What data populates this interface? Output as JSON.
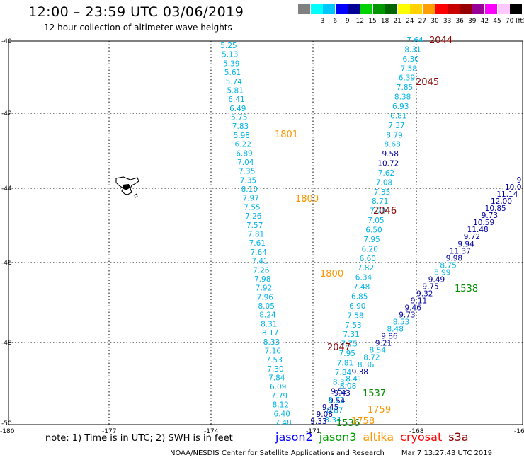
{
  "header": {
    "title": "12:00 – 23:59 UTC 03/06/2019",
    "subtitle": "12 hour collection of altimeter wave heights"
  },
  "legend": {
    "unit": "(ft)",
    "bins": [
      {
        "color": "#808080",
        "label": ""
      },
      {
        "color": "#00ffff",
        "label": "3"
      },
      {
        "color": "#00c8ff",
        "label": "6"
      },
      {
        "color": "#0000ff",
        "label": "9"
      },
      {
        "color": "#000096",
        "label": "12"
      },
      {
        "color": "#00d200",
        "label": "15"
      },
      {
        "color": "#009600",
        "label": "18"
      },
      {
        "color": "#006400",
        "label": "21"
      },
      {
        "color": "#ffff00",
        "label": "24"
      },
      {
        "color": "#ffd200",
        "label": "27"
      },
      {
        "color": "#ffa000",
        "label": "30"
      },
      {
        "color": "#ff0000",
        "label": "33"
      },
      {
        "color": "#c80000",
        "label": "36"
      },
      {
        "color": "#960000",
        "label": "39"
      },
      {
        "color": "#960096",
        "label": "42"
      },
      {
        "color": "#ff00ff",
        "label": "45"
      },
      {
        "color": "#ffc8ff",
        "label": "70"
      },
      {
        "color": "#000000",
        "label": ""
      }
    ]
  },
  "axes": {
    "lat_labels": [
      "-40",
      "-42",
      "-44",
      "-46",
      "-48",
      "-50"
    ],
    "lon_labels": [
      "-180",
      "-177",
      "-174",
      "-171",
      "-168",
      "-16"
    ]
  },
  "colors": {
    "cyan": "#00b4e6",
    "navy": "#0000a0",
    "orange": "#ff9600",
    "green": "#008c00",
    "darkred": "#8b0000"
  },
  "tracks": {
    "track_a": {
      "color_key": "cyan",
      "values": [
        "5.25",
        "5.13",
        "5.39",
        "5.61",
        "5.74",
        "5.81",
        "6.41",
        "6.49",
        "5.75",
        "7.83",
        "5.98",
        "6.22",
        "6.89",
        "7.04",
        "7.35",
        "7.35",
        "8.10",
        "7.97",
        "7.55",
        "7.26",
        "7.57",
        "7.81",
        "7.61",
        "7.64",
        "7.41",
        "7.26",
        "7.98",
        "7.92",
        "7.96",
        "8.05",
        "8.24",
        "8.31",
        "8.17",
        "8.33",
        "7.16",
        "7.53",
        "7.30",
        "7.84",
        "6.09",
        "7.79",
        "8.12",
        "6.40",
        "7.48"
      ]
    },
    "track_b": {
      "values": [
        "7.64",
        "8.31",
        "6.30",
        "7.58",
        "6.39",
        "7.85",
        "8.38",
        "6.93",
        "6.81",
        "7.37",
        "8.79",
        "8.68",
        "9.58",
        "10.72",
        "7.62",
        "7.08",
        "7.35",
        "8.71",
        "7.70",
        "7.05",
        "6.50",
        "7.95",
        "6.20",
        "6.60",
        "7.82",
        "6.34",
        "7.48",
        "6.85",
        "6.90",
        "7.58",
        "7.53",
        "7.31",
        "7.75",
        "7.95",
        "7.81",
        "7.84",
        "8.35",
        "9.52",
        "9.54",
        "8.87",
        "8.34"
      ]
    },
    "track_c": {
      "values": [
        "9",
        "10.0",
        "11.14",
        "12.00",
        "10.85",
        "9.73",
        "10.59",
        "11.48",
        "9.72",
        "9.94",
        "11.37",
        "9.98",
        "8.75",
        "8.99",
        "9.49",
        "9.75",
        "9.32",
        "9.11",
        "9.46",
        "9.73",
        "8.53",
        "8.48",
        "9.86",
        "9.21",
        "8.54",
        "8.72",
        "8.36",
        "9.38",
        "8.41",
        "8.08",
        "9.43",
        "8.72",
        "9.45",
        "9.08",
        "9.33"
      ]
    }
  },
  "time_labels": [
    "2044",
    "2045",
    "2046",
    "2047",
    "1801",
    "1800",
    "1800",
    "1538",
    "1537",
    "1759",
    "1758",
    "1536"
  ],
  "island": {
    "name": "chatham-islands"
  },
  "footer": {
    "note": "note:  1) Time is in UTC;  2) SWH is in feet",
    "satellites": [
      {
        "name": "jason2",
        "color": "#0000ff"
      },
      {
        "name": "jason3",
        "color": "#00a000"
      },
      {
        "name": "altika",
        "color": "#ff9600"
      },
      {
        "name": "cryosat",
        "color": "#ff0000"
      },
      {
        "name": "s3a",
        "color": "#8b0000"
      }
    ],
    "credit": "NOAA/NESDIS Center for Satellite Applications and Research",
    "timestamp": "Mar  7 13:27:43 UTC 2019"
  }
}
